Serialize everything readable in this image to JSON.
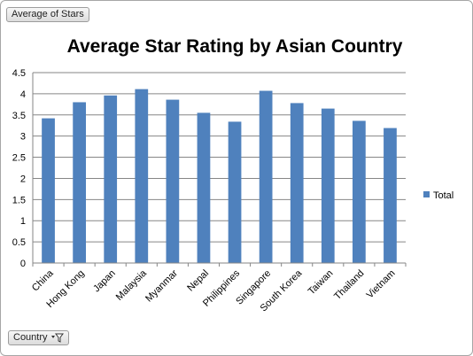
{
  "pivot": {
    "values_field_label": "Average of Stars",
    "axis_field_label": "Country"
  },
  "chart_data": {
    "type": "bar",
    "title": "Average Star Rating by Asian Country",
    "xlabel": "",
    "ylabel": "",
    "categories": [
      "China",
      "Hong Kong",
      "Japan",
      "Malaysia",
      "Myanmar",
      "Nepal",
      "Philippines",
      "Singapore",
      "South Korea",
      "Taiwan",
      "Thailand",
      "Vietnam"
    ],
    "series": [
      {
        "name": "Total",
        "color": "#4f81bd",
        "values": [
          3.42,
          3.8,
          3.96,
          4.11,
          3.86,
          3.55,
          3.34,
          4.07,
          3.78,
          3.65,
          3.36,
          3.19
        ]
      }
    ],
    "ylim": [
      0,
      4.5
    ],
    "yticks": [
      "0",
      "0.5",
      "1",
      "1.5",
      "2",
      "2.5",
      "3",
      "3.5",
      "4",
      "4.5"
    ],
    "grid": true,
    "legend": "right",
    "gridline_color": "#868686"
  }
}
